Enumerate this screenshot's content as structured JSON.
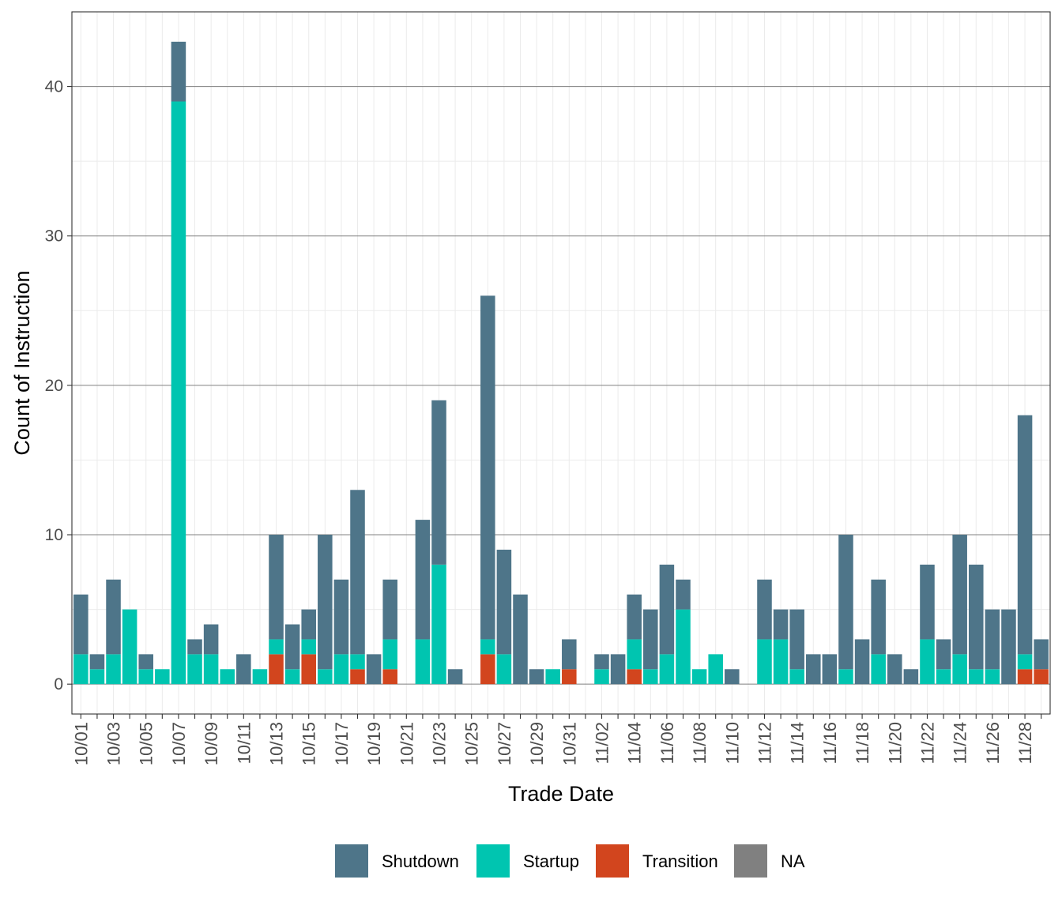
{
  "chart_data": {
    "type": "bar",
    "stacked": true,
    "xlabel": "Trade Date",
    "ylabel": "Count of Instruction",
    "ylim": [
      -2,
      45
    ],
    "yticks": [
      0,
      10,
      20,
      30,
      40
    ],
    "grid": true,
    "legend_position": "bottom",
    "categories": [
      "10/01",
      "10/02",
      "10/03",
      "10/04",
      "10/05",
      "10/06",
      "10/07",
      "10/08",
      "10/09",
      "10/10",
      "10/11",
      "10/12",
      "10/13",
      "10/14",
      "10/15",
      "10/16",
      "10/17",
      "10/18",
      "10/19",
      "10/20",
      "10/21",
      "10/22",
      "10/23",
      "10/24",
      "10/25",
      "10/26",
      "10/27",
      "10/28",
      "10/29",
      "10/30",
      "10/31",
      "11/01",
      "11/02",
      "11/03",
      "11/04",
      "11/05",
      "11/06",
      "11/07",
      "11/08",
      "11/09",
      "11/10",
      "11/11",
      "11/12",
      "11/13",
      "11/14",
      "11/15",
      "11/16",
      "11/17",
      "11/18",
      "11/19",
      "11/20",
      "11/21",
      "11/22",
      "11/23",
      "11/24",
      "11/25",
      "11/26",
      "11/27",
      "11/28",
      "11/29"
    ],
    "tick_labels": [
      "10/01",
      "10/03",
      "10/05",
      "10/07",
      "10/09",
      "10/11",
      "10/13",
      "10/15",
      "10/17",
      "10/19",
      "10/21",
      "10/23",
      "10/25",
      "10/27",
      "10/29",
      "10/31",
      "11/02",
      "11/04",
      "11/06",
      "11/08",
      "11/10",
      "11/12",
      "11/14",
      "11/16",
      "11/18",
      "11/20",
      "11/22",
      "11/24",
      "11/26",
      "11/28"
    ],
    "series": [
      {
        "name": "Transition",
        "color": "#d2451e",
        "values": [
          0,
          0,
          0,
          0,
          0,
          0,
          0,
          0,
          0,
          0,
          0,
          0,
          2,
          0,
          2,
          0,
          0,
          1,
          0,
          1,
          0,
          0,
          0,
          0,
          0,
          2,
          0,
          0,
          0,
          0,
          1,
          0,
          0,
          0,
          1,
          0,
          0,
          0,
          0,
          0,
          0,
          0,
          0,
          0,
          0,
          0,
          0,
          0,
          0,
          0,
          0,
          0,
          0,
          0,
          0,
          0,
          0,
          0,
          1,
          1
        ]
      },
      {
        "name": "Startup",
        "color": "#00c5b0",
        "values": [
          2,
          1,
          2,
          5,
          1,
          1,
          39,
          2,
          2,
          1,
          0,
          1,
          1,
          1,
          1,
          1,
          2,
          1,
          0,
          2,
          0,
          3,
          8,
          0,
          0,
          1,
          2,
          0,
          0,
          1,
          0,
          0,
          1,
          0,
          2,
          1,
          2,
          5,
          1,
          2,
          0,
          0,
          3,
          3,
          1,
          0,
          0,
          1,
          0,
          2,
          0,
          0,
          3,
          1,
          2,
          1,
          1,
          0,
          1,
          0
        ]
      },
      {
        "name": "Shutdown",
        "color": "#4e7589",
        "values": [
          4,
          1,
          5,
          0,
          1,
          0,
          4,
          1,
          2,
          0,
          2,
          0,
          7,
          3,
          2,
          9,
          5,
          11,
          2,
          4,
          0,
          8,
          11,
          1,
          0,
          23,
          7,
          6,
          1,
          0,
          2,
          0,
          1,
          2,
          3,
          4,
          6,
          2,
          0,
          0,
          1,
          0,
          4,
          2,
          4,
          2,
          2,
          9,
          3,
          5,
          2,
          1,
          5,
          2,
          8,
          7,
          4,
          5,
          16,
          2
        ]
      },
      {
        "name": "NA",
        "color": "#808080",
        "values": [
          0,
          0,
          0,
          0,
          0,
          0,
          0,
          0,
          0,
          0,
          0,
          0,
          0,
          0,
          0,
          0,
          0,
          0,
          0,
          0,
          0,
          0,
          0,
          0,
          0,
          0,
          0,
          0,
          0,
          0,
          0,
          0,
          0,
          0,
          0,
          0,
          0,
          0,
          0,
          0,
          0,
          0,
          0,
          0,
          0,
          0,
          0,
          0,
          0,
          0,
          0,
          0,
          0,
          0,
          0,
          0,
          0,
          0,
          0,
          0
        ]
      }
    ],
    "legend": [
      {
        "name": "Shutdown",
        "color": "#4e7589"
      },
      {
        "name": "Startup",
        "color": "#00c5b0"
      },
      {
        "name": "Transition",
        "color": "#d2451e"
      },
      {
        "name": "NA",
        "color": "#808080"
      }
    ]
  }
}
